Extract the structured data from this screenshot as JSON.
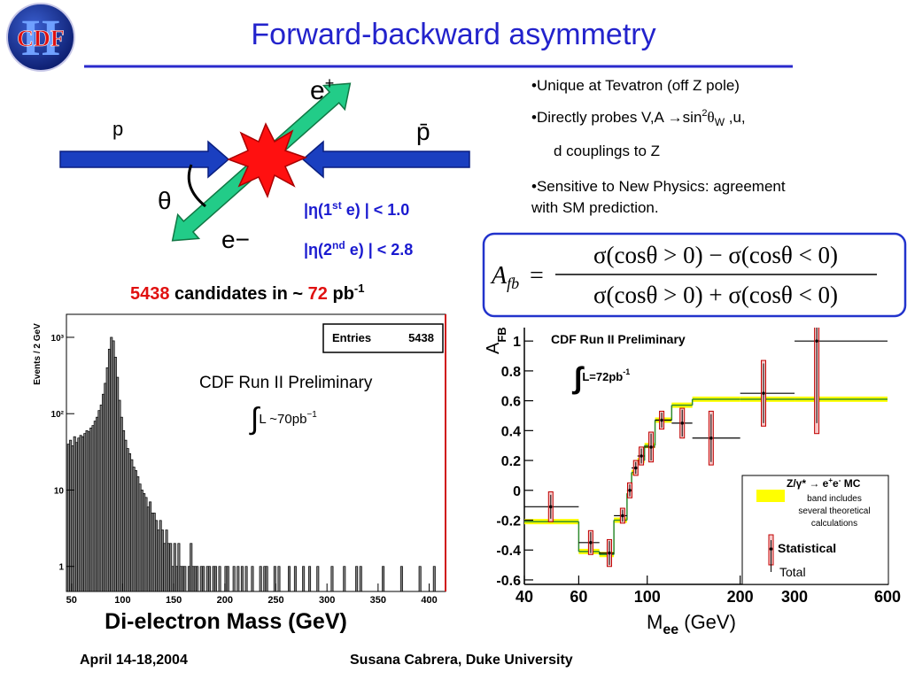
{
  "title": "Forward-backward asymmetry",
  "logo": {
    "numeral": "II",
    "name": "CDF"
  },
  "diagram": {
    "proton": "p",
    "antiproton": "p̄",
    "e_plus": [
      "e",
      "+"
    ],
    "e_minus": "e−",
    "angle": "θ",
    "cuts": [
      [
        "|η(1",
        "st",
        " e) | < 1.0"
      ],
      [
        "|η(2",
        "nd",
        " e) | < 2.8"
      ]
    ]
  },
  "candidates": {
    "count": 5438,
    "text": " candidates in ~ ",
    "lumi": 72,
    "unit": " pb",
    "unit_exp": "-1"
  },
  "bullets": [
    {
      "text": "Unique at Tevatron (off Z pole)"
    },
    {
      "parts": [
        "Directly probes V,A →sin",
        "2",
        "θ",
        "W",
        " ,u,"
      ],
      "cont": "d couplings to Z"
    },
    {
      "lines": [
        "Sensitive to New Physics: agreement",
        "with SM prediction."
      ]
    }
  ],
  "formula": {
    "lhs": "A",
    "lhs_sub": "fb",
    "eq": "=",
    "numerator": "σ(cosθ > 0) − σ(cosθ < 0)",
    "denominator": "σ(cosθ > 0) + σ(cosθ < 0)"
  },
  "footer": {
    "date": "April 14-18,2004",
    "author": "Susana Cabrera, Duke University"
  },
  "chart_data": [
    {
      "type": "histogram",
      "y_label": "Events / 2 GeV",
      "x_label": "Di-electron Mass (GeV)",
      "annotation": "CDF Run II Preliminary",
      "lumi": [
        "∫",
        "L ~70pb",
        "−1"
      ],
      "stats": {
        "label": "Entries",
        "value": 5438
      },
      "bins": [
        46,
        48,
        50,
        52,
        54,
        56,
        58,
        60,
        62,
        64,
        66,
        68,
        70,
        72,
        74,
        76,
        78,
        80,
        82,
        84,
        86,
        88,
        90,
        92,
        94,
        96,
        98,
        100,
        102,
        104,
        106,
        108,
        110,
        112,
        114,
        116,
        118,
        120,
        122,
        124,
        126,
        128,
        130,
        132,
        134,
        136,
        138,
        140,
        142,
        144,
        146,
        148,
        150,
        152,
        154,
        156,
        158,
        160,
        162,
        164,
        166,
        168,
        170,
        172,
        174,
        176,
        178,
        180,
        182,
        184,
        186,
        188,
        190,
        192,
        194,
        196,
        198,
        200,
        202,
        204,
        206,
        208,
        210,
        212,
        214,
        216,
        218,
        220,
        222,
        224,
        226,
        228,
        230,
        232,
        234,
        236,
        238,
        240,
        242,
        244,
        246,
        248,
        250,
        252,
        254,
        256,
        258,
        260,
        262,
        264,
        266,
        268,
        270,
        272,
        274,
        276,
        278,
        280,
        282,
        284,
        286,
        288,
        290,
        292,
        294,
        296,
        298,
        300,
        302,
        304,
        306,
        308,
        310,
        312,
        314,
        316,
        318,
        320,
        322,
        324,
        326,
        328,
        330,
        332,
        334,
        336,
        338,
        340,
        342,
        344,
        346,
        348,
        350,
        352,
        354,
        356,
        358,
        360,
        362,
        364,
        366,
        368,
        370,
        372,
        374,
        376,
        378,
        380,
        382,
        384,
        386,
        388,
        390,
        392,
        394,
        396,
        398,
        400,
        402,
        404,
        406,
        408,
        410
      ],
      "counts": [
        40,
        45,
        38,
        50,
        42,
        48,
        52,
        50,
        55,
        60,
        58,
        65,
        70,
        80,
        90,
        110,
        130,
        180,
        250,
        400,
        700,
        1000,
        900,
        550,
        300,
        150,
        90,
        60,
        45,
        35,
        30,
        25,
        20,
        18,
        15,
        12,
        10,
        9,
        8,
        6,
        7,
        5,
        5,
        4,
        3,
        4,
        3,
        2,
        3,
        2,
        2,
        1,
        2,
        1,
        2,
        1,
        1,
        1,
        0,
        1,
        2,
        1,
        1,
        1,
        0,
        1,
        1,
        0,
        1,
        1,
        0,
        1,
        1,
        0,
        1,
        0,
        0,
        1,
        1,
        0,
        0,
        1,
        0,
        1,
        0,
        1,
        0,
        1,
        0,
        0,
        1,
        0,
        0,
        0,
        1,
        0,
        1,
        1,
        0,
        0,
        0,
        1,
        0,
        1,
        0,
        0,
        0,
        0,
        1,
        0,
        0,
        1,
        0,
        0,
        0,
        1,
        0,
        0,
        1,
        0,
        0,
        0,
        1,
        0,
        0,
        0,
        0,
        0,
        0,
        1,
        0,
        0,
        0,
        0,
        0,
        1,
        0,
        0,
        0,
        0,
        0,
        1,
        0,
        1,
        0,
        0,
        0,
        0,
        0,
        0,
        0,
        0,
        0,
        0,
        1,
        0,
        0,
        0,
        0,
        0,
        0,
        0,
        0,
        1,
        0,
        0,
        0,
        0,
        0,
        0,
        0,
        0,
        1,
        0,
        0,
        0,
        0,
        0,
        0,
        1,
        0,
        0
      ],
      "color": "#808080",
      "xlim": [
        45,
        416
      ],
      "ylim": [
        0.47,
        2000
      ],
      "log_y": true,
      "xticks": [
        50,
        100,
        150,
        200,
        250,
        300,
        350,
        400
      ],
      "yticks": [
        1,
        10,
        {
          "value": 100,
          "label": "10²"
        },
        {
          "value": 1000,
          "label": "10³"
        }
      ]
    },
    {
      "type": "step-errorbar",
      "y_label": [
        "A",
        "FB"
      ],
      "x_label": [
        "M",
        "ee",
        " (GeV)"
      ],
      "annotation": "CDF Run II Preliminary",
      "lumi": [
        "∫",
        "L=72pb",
        "-1"
      ],
      "bins": [
        40,
        60,
        70,
        78,
        86,
        89,
        93,
        98,
        106,
        120,
        140,
        200,
        300,
        600
      ],
      "x": [
        48.7,
        65.6,
        75.4,
        83.2,
        87.8,
        91.8,
        95.7,
        102.9,
        111.4,
        129.8,
        161,
        238,
        354
      ],
      "values": [
        -0.11,
        -0.35,
        -0.42,
        -0.17,
        0.0,
        0.15,
        0.23,
        0.29,
        0.47,
        0.45,
        0.35,
        0.65,
        1.0
      ],
      "errors_total": [
        0.1,
        0.08,
        0.09,
        0.05,
        0.05,
        0.05,
        0.06,
        0.1,
        0.06,
        0.1,
        0.18,
        0.22,
        0.62
      ],
      "errors_stat": [
        0.08,
        0.07,
        0.08,
        0.04,
        0.04,
        0.04,
        0.05,
        0.09,
        0.05,
        0.09,
        0.16,
        0.2,
        0.55
      ],
      "theory": {
        "name": [
          "Z/γ* → e",
          "+",
          "e",
          "-",
          " MC"
        ],
        "note": [
          "band includes",
          "several theoretical",
          "calculations"
        ],
        "color": "#2e8b2e",
        "band_color": "#ffff00",
        "values": [
          -0.21,
          -0.41,
          -0.43,
          -0.2,
          -0.02,
          0.12,
          0.2,
          0.3,
          0.47,
          0.57,
          0.61,
          0.61,
          0.61
        ]
      },
      "legend": {
        "stat": "Statistical",
        "total": "Total"
      },
      "colors": {
        "total": "#c00000",
        "stat": "#000000"
      },
      "log_x": true,
      "xlim": [
        40,
        600
      ],
      "ylim": [
        -0.63,
        1.09
      ],
      "xticks": [
        40,
        60,
        100,
        200,
        300,
        600
      ],
      "yticks": [
        -0.6,
        -0.4,
        -0.2,
        0,
        0.2,
        0.4,
        0.6,
        0.8,
        1
      ]
    }
  ]
}
